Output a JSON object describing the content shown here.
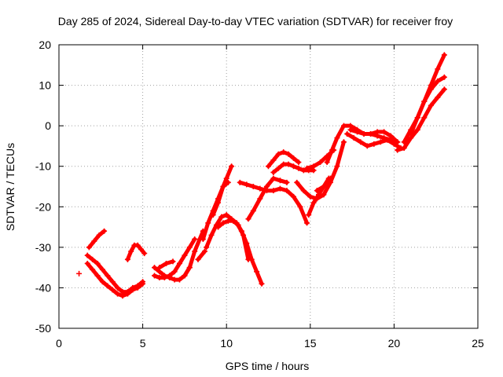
{
  "chart_data": {
    "type": "scatter",
    "title": "Day 285 of 2024, Sidereal Day-to-day VTEC variation (SDTVAR) for receiver froy",
    "xlabel": "GPS time / hours",
    "ylabel": "SDTVAR / TECUs",
    "xlim": [
      0,
      25
    ],
    "ylim": [
      -50,
      20
    ],
    "xticks": [
      0,
      5,
      10,
      15,
      20,
      25
    ],
    "yticks": [
      -50,
      -40,
      -30,
      -20,
      -10,
      0,
      10,
      20
    ],
    "grid": true,
    "legend": "none",
    "marker": "plus",
    "color": "#ff0000",
    "series": [
      {
        "x": [
          1.2
        ],
        "y": [
          -36.5
        ]
      },
      {
        "x": [
          1.7,
          2.0,
          2.3,
          2.6,
          2.9,
          3.2,
          3.5,
          3.8,
          4.1,
          4.4,
          4.7,
          5.0
        ],
        "y": [
          -32,
          -33,
          -34,
          -35.5,
          -37,
          -38.5,
          -40,
          -41,
          -41,
          -40,
          -39.5,
          -38.5
        ]
      },
      {
        "x": [
          1.7,
          2.0,
          2.3,
          2.6,
          2.9,
          3.2,
          3.5,
          3.8,
          4.1,
          4.4,
          4.7,
          5.0
        ],
        "y": [
          -34,
          -35.5,
          -37,
          -38.5,
          -39.5,
          -40.5,
          -41.5,
          -42,
          -41.5,
          -40.5,
          -40,
          -39
        ]
      },
      {
        "x": [
          1.8,
          2.1,
          2.4,
          2.7
        ],
        "y": [
          -30,
          -28.5,
          -27,
          -26
        ]
      },
      {
        "x": [
          4.1,
          4.3,
          4.5,
          4.7,
          4.9,
          5.1
        ],
        "y": [
          -33,
          -31,
          -29.5,
          -29.5,
          -30.5,
          -31.5
        ]
      },
      {
        "x": [
          5.7,
          6.0,
          6.3,
          6.6,
          6.9,
          7.2,
          7.5,
          7.8
        ],
        "y": [
          -35,
          -36,
          -37,
          -37.5,
          -38,
          -38,
          -37,
          -35
        ]
      },
      {
        "x": [
          5.7,
          6.0,
          6.3,
          6.6,
          6.9,
          7.2,
          7.5,
          7.8,
          8.1
        ],
        "y": [
          -37,
          -37.5,
          -37.5,
          -37,
          -36,
          -34,
          -32,
          -30,
          -28
        ]
      },
      {
        "x": [
          6.0,
          6.4,
          6.8
        ],
        "y": [
          -35,
          -34,
          -33.5
        ]
      },
      {
        "x": [
          7.5,
          7.8,
          8.1,
          8.4,
          8.6
        ],
        "y": [
          -37,
          -35,
          -31,
          -28,
          -26
        ]
      },
      {
        "x": [
          8.3,
          8.7
        ],
        "y": [
          -33,
          -31
        ]
      },
      {
        "x": [
          8.6,
          8.9,
          9.2,
          9.5,
          9.8,
          10.1
        ],
        "y": [
          -28,
          -24,
          -21,
          -18,
          -15,
          -14
        ]
      },
      {
        "x": [
          8.8,
          9.1,
          9.4,
          9.7,
          10.0,
          10.3,
          10.6
        ],
        "y": [
          -30,
          -27,
          -24.5,
          -22.5,
          -22,
          -23,
          -24
        ]
      },
      {
        "x": [
          9.2,
          9.5,
          9.8,
          10.0,
          10.3
        ],
        "y": [
          -22,
          -19,
          -15,
          -13,
          -10
        ]
      },
      {
        "x": [
          9.5,
          9.8,
          10.1,
          10.4,
          10.7,
          11.0,
          11.3
        ],
        "y": [
          -25,
          -24,
          -23.5,
          -23.5,
          -24.5,
          -27,
          -33
        ]
      },
      {
        "x": [
          10.6,
          10.9,
          11.2,
          11.5,
          11.8,
          12.1
        ],
        "y": [
          -24,
          -26,
          -29,
          -33,
          -36,
          -39
        ]
      },
      {
        "x": [
          10.8,
          11.2,
          11.6,
          12.0,
          12.4,
          12.8,
          13.2,
          13.6,
          14.0,
          14.4,
          14.8
        ],
        "y": [
          -14,
          -14.5,
          -15,
          -15.5,
          -16,
          -16,
          -15.5,
          -16,
          -17.5,
          -20,
          -24
        ]
      },
      {
        "x": [
          11.3,
          11.6,
          12.0,
          12.4,
          12.8,
          13.2,
          13.6
        ],
        "y": [
          -23,
          -21,
          -18,
          -15,
          -13,
          -13.5,
          -14
        ]
      },
      {
        "x": [
          12.5,
          12.8,
          13.1,
          13.4,
          13.7,
          14.0,
          14.3
        ],
        "y": [
          -10,
          -8.5,
          -7,
          -6.5,
          -7,
          -8,
          -9
        ]
      },
      {
        "x": [
          12.8,
          13.1,
          13.4,
          13.7,
          14.0,
          14.3,
          14.6,
          14.9,
          15.2
        ],
        "y": [
          -11.5,
          -10.5,
          -9.5,
          -9.5,
          -10,
          -10.5,
          -11,
          -11,
          -11
        ]
      },
      {
        "x": [
          14.2,
          14.6,
          15.0,
          15.4,
          15.8,
          16.2,
          16.6,
          17.0
        ],
        "y": [
          -14,
          -16,
          -17.5,
          -18,
          -17,
          -14,
          -10,
          -4
        ]
      },
      {
        "x": [
          14.8,
          15.2,
          15.6,
          16.0,
          16.4
        ],
        "y": [
          -10.5,
          -10,
          -9,
          -7.5,
          -6
        ]
      },
      {
        "x": [
          14.9,
          15.2,
          15.5,
          15.8,
          16.1
        ],
        "y": [
          -22,
          -19,
          -17,
          -15,
          -13
        ]
      },
      {
        "x": [
          15.4,
          15.8,
          16.2
        ],
        "y": [
          -16,
          -15,
          -13
        ]
      },
      {
        "x": [
          16.0,
          16.3,
          16.6,
          17.0,
          17.4,
          17.8,
          18.2,
          18.6,
          19.0,
          19.4,
          19.8,
          20.2
        ],
        "y": [
          -9,
          -6,
          -3,
          0,
          0,
          -1,
          -2,
          -2,
          -2.5,
          -3,
          -3.5,
          -4
        ]
      },
      {
        "x": [
          17.2,
          17.6,
          18.0,
          18.4,
          18.8,
          19.2,
          19.6,
          20.0,
          20.4
        ],
        "y": [
          -2,
          -3,
          -4,
          -5,
          -4.5,
          -4,
          -3.5,
          -4.5,
          -5.5
        ]
      },
      {
        "x": [
          17.4,
          17.8,
          18.2,
          18.6,
          19.0,
          19.4,
          19.8,
          20.2
        ],
        "y": [
          -1,
          -1.5,
          -2,
          -2,
          -1.5,
          -1.5,
          -2.5,
          -4
        ]
      },
      {
        "x": [
          20.2,
          20.6,
          21.0,
          21.4,
          21.8,
          22.2,
          22.6,
          23.0
        ],
        "y": [
          -6,
          -5.5,
          -3,
          -1,
          2,
          5,
          7,
          9
        ]
      },
      {
        "x": [
          20.6,
          21.0,
          21.4,
          21.8,
          22.2,
          22.6,
          23.0
        ],
        "y": [
          -4,
          -1,
          2,
          6,
          9,
          11,
          12
        ]
      },
      {
        "x": [
          21.0,
          21.4,
          21.8,
          22.2,
          22.6,
          23.0
        ],
        "y": [
          -2,
          2,
          6,
          10,
          14,
          17.5
        ]
      }
    ]
  }
}
